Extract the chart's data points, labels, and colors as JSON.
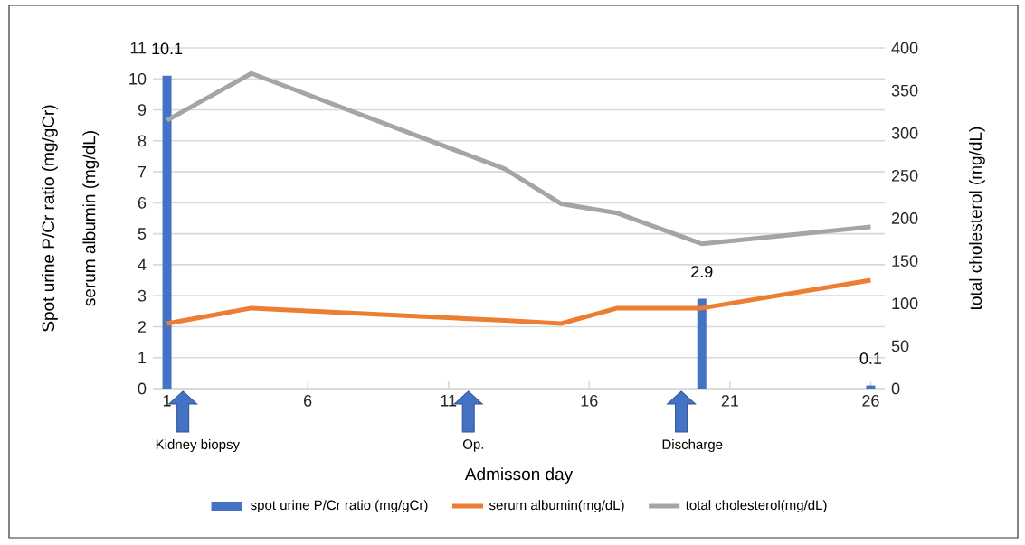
{
  "chart_data": {
    "type": "line",
    "xlabel": "Admisson day",
    "ylabel": "Spot urine P/Cr ratio (mg/gCr)",
    "y2label": "total cholesterol (mg/dL)",
    "annotations": [
      "serum albumin (mg/dL)",
      "Kidney biopsy",
      "Op.",
      "Discharge"
    ],
    "xlim": [
      0.5,
      26.5
    ],
    "xticks": [
      1,
      6,
      11,
      16,
      21,
      26
    ],
    "ylim": [
      0,
      11
    ],
    "yticks": [
      0,
      1,
      2,
      3,
      4,
      5,
      6,
      7,
      8,
      9,
      10,
      11
    ],
    "y2lim": [
      0,
      400
    ],
    "y2ticks": [
      0,
      50,
      100,
      150,
      200,
      250,
      300,
      350,
      400
    ],
    "grid": "y",
    "legend": "bottom",
    "series": [
      {
        "name": "spot urine P/Cr ratio (mg/gCr)",
        "type": "bar",
        "color": "#4472c4",
        "x": [
          1,
          20,
          26
        ],
        "values": [
          10.1,
          2.9,
          0.1
        ],
        "value_labels": [
          "10.1",
          "2.9",
          "0.1"
        ]
      },
      {
        "name": "serum albumin(mg/dL)",
        "color": "#ed7d31",
        "x": [
          1,
          4,
          13,
          15,
          17,
          20,
          26
        ],
        "values": [
          2.1,
          2.6,
          2.2,
          2.1,
          2.6,
          2.6,
          3.5
        ]
      },
      {
        "name": "total cholesterol(mg/dL)",
        "color": "#a5a5a5",
        "axis": "y2",
        "x": [
          1,
          4,
          13,
          15,
          17,
          20,
          26
        ],
        "values": [
          315,
          370,
          258,
          217,
          206,
          170,
          190
        ]
      }
    ]
  }
}
